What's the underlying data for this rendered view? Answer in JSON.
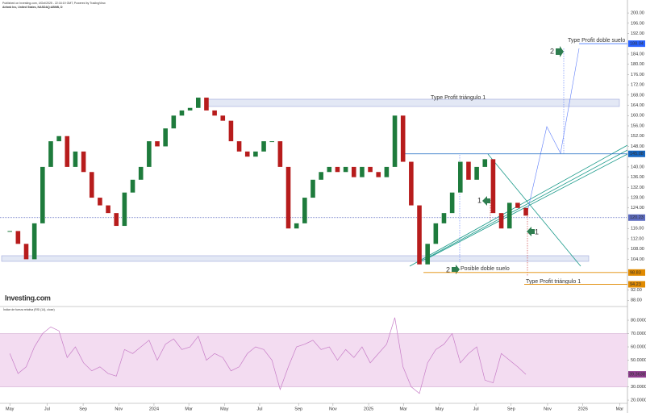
{
  "header": {
    "published": "Published on Investing.com, 4/Oct/2025 - 22:16:19 GMT, Powered by TradingView.",
    "instrument": "Airbnb Inc, United States, NASDAQ:ABNB, D",
    "logo": "Investing.com",
    "rsi_title": "Índice de fuerza relativa (RSI (14), close)"
  },
  "annotations": [
    "Type Profit doble suelo",
    "2",
    "Type Profit triángulo 1",
    "1",
    "1",
    "2",
    "Posible doble suelo",
    "Type Profit triángulo 1"
  ],
  "chart_data": [
    {
      "type": "candlestick",
      "up_color": "#1e7b3c",
      "down_color": "#b71c1c",
      "x": [
        0,
        2,
        4,
        6,
        8,
        10,
        12,
        14,
        16,
        18,
        20,
        22,
        24,
        26,
        28,
        30,
        32,
        34,
        36,
        38,
        40,
        42,
        44,
        46,
        48,
        50,
        52,
        54,
        56,
        58,
        60,
        62,
        64,
        66,
        68,
        70,
        72,
        74,
        76,
        78,
        80,
        82,
        84,
        86,
        88,
        90,
        92,
        94,
        96,
        98,
        100,
        102,
        104,
        106,
        108,
        110,
        112,
        114,
        116,
        118,
        120,
        122,
        124,
        126
      ],
      "values": [
        115,
        110,
        104,
        118,
        140,
        150,
        152,
        140,
        146,
        138,
        128,
        125,
        122,
        117,
        130,
        135,
        140,
        150,
        148,
        155,
        160,
        162,
        163,
        167,
        162,
        160,
        158,
        150,
        146,
        144,
        146,
        150,
        150,
        140,
        116,
        118,
        128,
        135,
        138,
        140,
        138,
        140,
        136,
        140,
        138,
        136,
        140,
        160,
        142,
        125,
        102,
        110,
        118,
        122,
        130,
        142,
        135,
        140,
        143,
        122,
        116,
        126,
        124,
        121
      ],
      "xlim": [
        -2.4,
        150.8
      ],
      "ylim": [
        86.2,
        203.8
      ],
      "yticks": [
        {
          "value": 200,
          "label": "200.00"
        },
        {
          "value": 196,
          "label": "196.00"
        },
        {
          "value": 192,
          "label": "192.00"
        },
        {
          "value": 184,
          "label": "184.00"
        },
        {
          "value": 180,
          "label": "180.00"
        },
        {
          "value": 176,
          "label": "176.00"
        },
        {
          "value": 172,
          "label": "172.00"
        },
        {
          "value": 168,
          "label": "168.00"
        },
        {
          "value": 164,
          "label": "164.00"
        },
        {
          "value": 160,
          "label": "160.00"
        },
        {
          "value": 156,
          "label": "156.00"
        },
        {
          "value": 152,
          "label": "152.00"
        },
        {
          "value": 148,
          "label": "148.00"
        },
        {
          "value": 140,
          "label": "140.00"
        },
        {
          "value": 136,
          "label": "136.00"
        },
        {
          "value": 132,
          "label": "132.00"
        },
        {
          "value": 128,
          "label": "128.00"
        },
        {
          "value": 124,
          "label": "124.00"
        },
        {
          "value": 116,
          "label": "116.00"
        },
        {
          "value": 112,
          "label": "112.00"
        },
        {
          "value": 108,
          "label": "108.00"
        },
        {
          "value": 104,
          "label": "104.00"
        },
        {
          "value": 92,
          "label": "92.00"
        },
        {
          "value": 88,
          "label": "88.00"
        }
      ],
      "levels": [
        {
          "value": 188.04,
          "color": "#2962ff",
          "from": 139
        },
        {
          "value": 145.08,
          "color": "#1565c0",
          "from": 96
        },
        {
          "value": 120.23,
          "color": "#5c6bc0",
          "from": -2.4
        },
        {
          "value": 98.83,
          "color": "#e08a00",
          "from": 101
        },
        {
          "value": 94.23,
          "color": "#e08a00",
          "from": 125.6
        }
      ]
    },
    {
      "type": "line",
      "color": "#c77dc7",
      "band": [
        30,
        70
      ],
      "band_color": "#f3dcf1",
      "x": [
        0,
        2,
        4,
        6,
        8,
        10,
        12,
        14,
        16,
        18,
        20,
        22,
        24,
        26,
        28,
        30,
        32,
        34,
        36,
        38,
        40,
        42,
        44,
        46,
        48,
        50,
        52,
        54,
        56,
        58,
        60,
        62,
        64,
        66,
        68,
        70,
        72,
        74,
        76,
        78,
        80,
        82,
        84,
        86,
        88,
        90,
        92,
        94,
        96,
        98,
        100,
        102,
        104,
        106,
        108,
        110,
        112,
        114,
        116,
        118,
        120,
        122,
        124,
        126
      ],
      "values": [
        55,
        40,
        45,
        60,
        70,
        75,
        72,
        52,
        60,
        48,
        42,
        45,
        40,
        38,
        58,
        55,
        60,
        65,
        50,
        62,
        66,
        58,
        60,
        68,
        50,
        55,
        52,
        42,
        45,
        55,
        60,
        58,
        50,
        28,
        45,
        60,
        62,
        65,
        58,
        60,
        50,
        58,
        52,
        60,
        48,
        55,
        62,
        82,
        45,
        30,
        25,
        48,
        58,
        62,
        70,
        48,
        55,
        60,
        35,
        33,
        55,
        50,
        45,
        39.3638
      ],
      "xlim": [
        -2.4,
        150.8
      ],
      "ylim": [
        17.6,
        88.5
      ],
      "yticks": [
        {
          "value": 80,
          "label": "80.0000"
        },
        {
          "value": 70,
          "label": "70.0000"
        },
        {
          "value": 60,
          "label": "60.0000"
        },
        {
          "value": 50,
          "label": "50.0000"
        },
        {
          "value": 40,
          "label": "40.0000"
        },
        {
          "value": 30,
          "label": "30.0000"
        },
        {
          "value": 20,
          "label": "20.0000"
        }
      ],
      "xticks": [
        {
          "value": 0,
          "label": "May"
        },
        {
          "value": 9.1,
          "label": "Jul"
        },
        {
          "value": 17.9,
          "label": "Sep"
        },
        {
          "value": 26.6,
          "label": "Nov"
        },
        {
          "value": 35.2,
          "label": "2024"
        },
        {
          "value": 43.7,
          "label": "Mar"
        },
        {
          "value": 52.4,
          "label": "May"
        },
        {
          "value": 61,
          "label": "Jul"
        },
        {
          "value": 70.5,
          "label": "Sep"
        },
        {
          "value": 78.9,
          "label": "Nov"
        },
        {
          "value": 87.6,
          "label": "2025"
        },
        {
          "value": 96.1,
          "label": "Mar"
        },
        {
          "value": 104.9,
          "label": "May"
        },
        {
          "value": 113.8,
          "label": "Jul"
        },
        {
          "value": 122.4,
          "label": "Sep"
        },
        {
          "value": 131.3,
          "label": "Nov"
        },
        {
          "value": 139.9,
          "label": "2026"
        },
        {
          "value": 148.9,
          "label": "Mar"
        }
      ]
    }
  ]
}
